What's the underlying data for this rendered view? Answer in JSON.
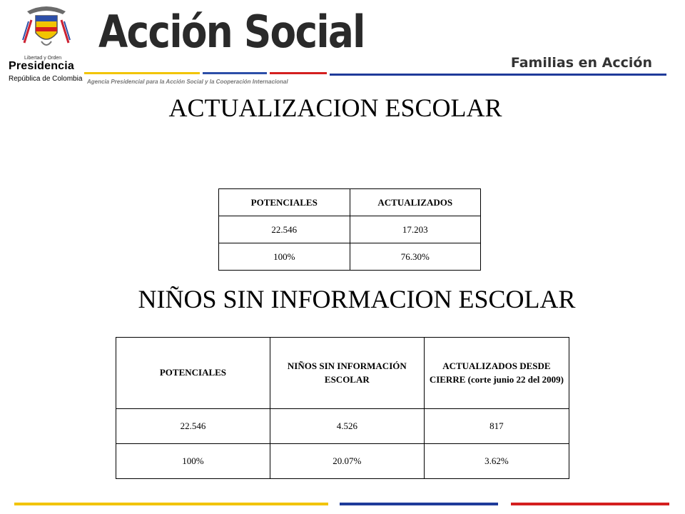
{
  "header": {
    "motto": "Libertad y Orden",
    "presidencia": "Presidencia",
    "republica": "República de Colombia",
    "brand": "Acción Social",
    "brand_sub": "Agencia Presidencial para la Acción Social y la Cooperación Internacional",
    "program": "Familias en Acción"
  },
  "section1": {
    "title": "ACTUALIZACION ESCOLAR",
    "table": {
      "headers": [
        "POTENCIALES",
        "ACTUALIZADOS"
      ],
      "rows": [
        [
          "22.546",
          "17.203"
        ],
        [
          "100%",
          "76.30%"
        ]
      ]
    }
  },
  "section2": {
    "title": "NIÑOS SIN INFORMACION ESCOLAR",
    "table": {
      "headers": [
        "POTENCIALES",
        "NIÑOS SIN INFORMACIÓN ESCOLAR",
        "ACTUALIZADOS DESDE CIERRE (corte junio 22 del 2009)"
      ],
      "rows": [
        [
          "22.546",
          "4.526",
          "817"
        ],
        [
          "100%",
          "20.07%",
          "3.62%"
        ]
      ]
    }
  },
  "colors": {
    "yellow": "#f2c400",
    "blue": "#1f3b9a",
    "red": "#d41f1f"
  }
}
